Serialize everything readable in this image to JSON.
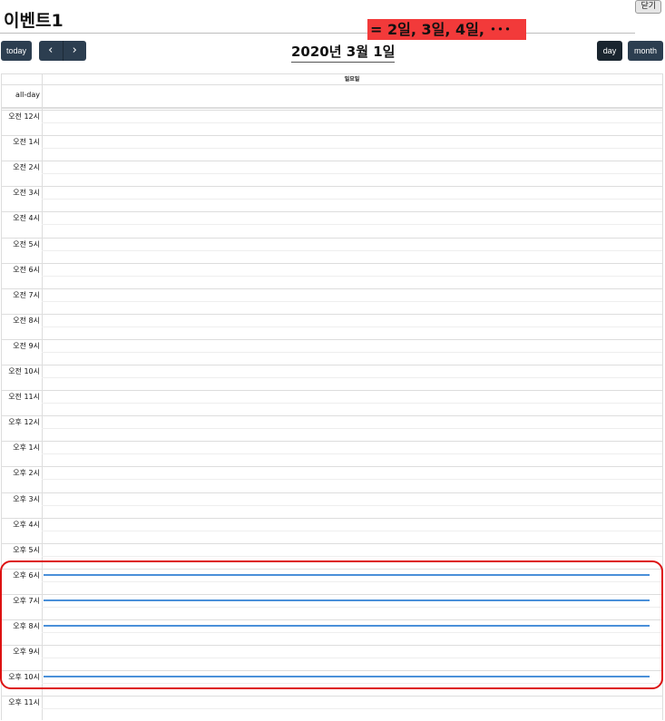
{
  "page": {
    "title": "이벤트1",
    "close_label": "닫기",
    "annotation": "= 2일, 3일, 4일, ･･･"
  },
  "toolbar": {
    "today_label": "today",
    "prev_icon": "‹",
    "next_icon": "›",
    "current_date": "2020년 3월 1일",
    "day_label": "day",
    "month_label": "month"
  },
  "calendar": {
    "day_header": "일요일",
    "allday_label": "all-day",
    "hours": [
      "오전 12시",
      "오전 1시",
      "오전 2시",
      "오전 3시",
      "오전 4시",
      "오전 5시",
      "오전 6시",
      "오전 7시",
      "오전 8시",
      "오전 9시",
      "오전 10시",
      "오전 11시",
      "오후 12시",
      "오후 1시",
      "오후 2시",
      "오후 3시",
      "오후 4시",
      "오후 5시",
      "오후 6시",
      "오후 7시",
      "오후 8시",
      "오후 9시",
      "오후 10시",
      "오후 11시"
    ],
    "event_hours": [
      18,
      19,
      20,
      22
    ],
    "event_color": "#4a90d9",
    "highlight_color": "#dd1111"
  }
}
